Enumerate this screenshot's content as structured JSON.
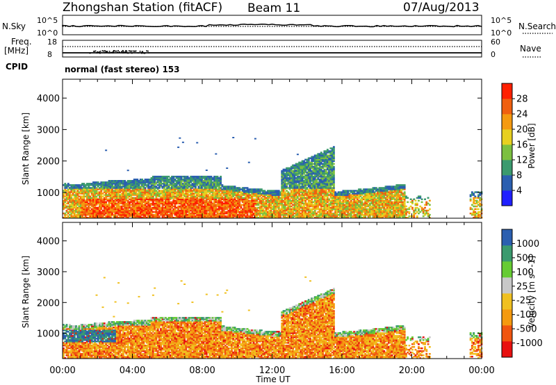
{
  "header": {
    "station": "Zhongshan Station (fitACF)",
    "beam": "Beam 11",
    "date": "07/Aug/2013",
    "cpid_label": "CPID",
    "cpid_value": "normal (fast stereo) 153"
  },
  "strips": {
    "nsky_label": "N.Sky",
    "nsearch_label": "N.Search",
    "nsky_ticks": [
      "10^5",
      "10^0"
    ],
    "nsearch_ticks": [
      "10^5",
      "10^0"
    ],
    "freq_label_1": "Freq.",
    "freq_label_2": "[MHz]",
    "freq_ticks": [
      "18",
      "8"
    ],
    "nave_label": "Nave",
    "nave_ticks": [
      "60",
      "0"
    ]
  },
  "colors": {
    "power_scale": [
      "#1f1fff",
      "#2b5fb0",
      "#3b9a6e",
      "#7cc040",
      "#e8d020",
      "#f59a10",
      "#f06010",
      "#ff2000"
    ],
    "velocity_scale": [
      "#e81010",
      "#f05510",
      "#f59a10",
      "#f0c020",
      "#c8c8c8",
      "#66cc33",
      "#3b9a6e",
      "#2b5fb0"
    ]
  },
  "chart_data": [
    {
      "type": "heatmap",
      "title": "",
      "xlabel": "",
      "ylabel": "Slant Range [km]",
      "x_ticks": [
        "00:00",
        "04:00",
        "08:00",
        "12:00",
        "16:00",
        "20:00",
        "00:00"
      ],
      "y_ticks": [
        "4000",
        "3000",
        "2000",
        "1000"
      ],
      "xlim": [
        0,
        24
      ],
      "ylim": [
        180,
        4600
      ],
      "colorbar": {
        "label": "Power [dB]",
        "ticks": [
          "28",
          "24",
          "20",
          "16",
          "12",
          "8",
          "4"
        ]
      }
    },
    {
      "type": "heatmap",
      "title": "",
      "xlabel": "Time UT",
      "ylabel": "Slant Range [km]",
      "x_ticks": [
        "00:00",
        "04:00",
        "08:00",
        "12:00",
        "16:00",
        "20:00",
        "00:00"
      ],
      "y_ticks": [
        "4000",
        "3000",
        "2000",
        "1000"
      ],
      "xlim": [
        0,
        24
      ],
      "ylim": [
        180,
        4600
      ],
      "colorbar": {
        "label": "Velocity [m s^-1]",
        "ticks": [
          "1000",
          "500",
          "100",
          "25",
          "-25",
          "-100",
          "-500",
          "-1000"
        ]
      }
    }
  ]
}
